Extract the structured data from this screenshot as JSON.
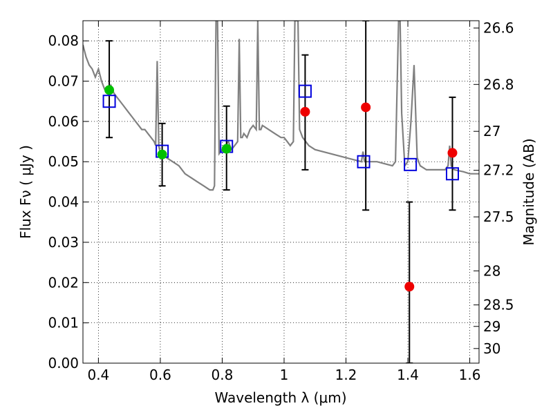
{
  "chart_data": {
    "type": "scatter",
    "xlabel": "Wavelength  λ (μm)",
    "ylabel": "Flux  Fν  ( μJy )",
    "ylabel2": "Magnitude (AB)",
    "xlim": [
      0.35,
      1.63
    ],
    "ylim": [
      0.0,
      0.085
    ],
    "grid": true,
    "x_ticks": [
      0.4,
      0.6,
      0.8,
      1.0,
      1.2,
      1.4,
      1.6
    ],
    "x_tick_labels": [
      "0.4",
      "0.6",
      "0.8",
      "1",
      "1.2",
      "1.4",
      "1.6"
    ],
    "y_ticks": [
      0.0,
      0.01,
      0.02,
      0.03,
      0.04,
      0.05,
      0.06,
      0.07,
      0.08
    ],
    "y_tick_labels": [
      "0.00",
      "0.01",
      "0.02",
      "0.03",
      "0.04",
      "0.05",
      "0.06",
      "0.07",
      "0.08"
    ],
    "mag_ticks": [
      26.6,
      26.8,
      27.0,
      27.2,
      27.5,
      28.0,
      28.5,
      29.0,
      30.0
    ],
    "mag_tick_labels": [
      "26.6",
      "26.8",
      "27",
      "27.2",
      "27.5",
      "28",
      "28.5",
      "29",
      "30"
    ],
    "colors": {
      "model": "#808080",
      "optical": "#00c000",
      "nir": "#ee0000",
      "model_photometry": "#0000dd",
      "errorbar": "#000000"
    },
    "series": [
      {
        "role": "model_spectrum",
        "color": "#808080",
        "x": [
          0.35,
          0.36,
          0.37,
          0.38,
          0.39,
          0.4,
          0.41,
          0.42,
          0.43,
          0.44,
          0.45,
          0.46,
          0.48,
          0.49,
          0.5,
          0.51,
          0.52,
          0.53,
          0.54,
          0.55,
          0.56,
          0.57,
          0.58,
          0.585,
          0.59,
          0.595,
          0.6,
          0.62,
          0.64,
          0.66,
          0.68,
          0.7,
          0.72,
          0.74,
          0.76,
          0.77,
          0.775,
          0.78,
          0.785,
          0.79,
          0.8,
          0.81,
          0.82,
          0.83,
          0.84,
          0.85,
          0.855,
          0.86,
          0.865,
          0.87,
          0.88,
          0.89,
          0.9,
          0.91,
          0.915,
          0.92,
          0.925,
          0.93,
          0.95,
          0.97,
          0.99,
          1.0,
          1.01,
          1.02,
          1.03,
          1.035,
          1.04,
          1.045,
          1.05,
          1.06,
          1.065,
          1.07,
          1.08,
          1.1,
          1.15,
          1.2,
          1.25,
          1.255,
          1.26,
          1.3,
          1.35,
          1.36,
          1.37,
          1.375,
          1.38,
          1.39,
          1.4,
          1.41,
          1.42,
          1.43,
          1.44,
          1.46,
          1.5,
          1.52,
          1.53,
          1.535,
          1.54,
          1.55,
          1.58,
          1.6,
          1.63
        ],
        "y": [
          0.079,
          0.076,
          0.074,
          0.073,
          0.071,
          0.073,
          0.07,
          0.068,
          0.068,
          0.069,
          0.067,
          0.066,
          0.064,
          0.063,
          0.062,
          0.061,
          0.06,
          0.059,
          0.058,
          0.058,
          0.057,
          0.056,
          0.055,
          0.054,
          0.075,
          0.054,
          0.052,
          0.051,
          0.05,
          0.049,
          0.047,
          0.046,
          0.045,
          0.044,
          0.043,
          0.043,
          0.044,
          0.085,
          0.085,
          0.052,
          0.053,
          0.054,
          0.055,
          0.053,
          0.054,
          0.055,
          0.0805,
          0.056,
          0.056,
          0.057,
          0.056,
          0.058,
          0.059,
          0.058,
          0.085,
          0.058,
          0.058,
          0.059,
          0.058,
          0.057,
          0.056,
          0.056,
          0.055,
          0.054,
          0.055,
          0.085,
          0.085,
          0.085,
          0.058,
          0.056,
          0.0555,
          0.055,
          0.054,
          0.053,
          0.052,
          0.051,
          0.05,
          0.0525,
          0.05,
          0.05,
          0.049,
          0.05,
          0.085,
          0.085,
          0.062,
          0.049,
          0.05,
          0.06,
          0.074,
          0.051,
          0.049,
          0.048,
          0.048,
          0.048,
          0.049,
          0.054,
          0.049,
          0.048,
          0.0475,
          0.047,
          0.047
        ]
      },
      {
        "name": "",
        "role": "optical_photometry",
        "color": "#00c000",
        "x": [
          0.435,
          0.606,
          0.814
        ],
        "y": [
          0.0678,
          0.0518,
          0.0532
        ],
        "yerr_low": [
          0.056,
          0.044,
          0.043
        ],
        "yerr_high": [
          0.08,
          0.0595,
          0.0638
        ]
      },
      {
        "name": "",
        "role": "nir_photometry",
        "color": "#ee0000",
        "x": [
          1.068,
          1.264,
          1.405,
          1.544
        ],
        "y": [
          0.0624,
          0.0635,
          0.019,
          0.0522
        ],
        "yerr_low": [
          0.048,
          0.038,
          0.0,
          0.038
        ],
        "yerr_high": [
          0.0765,
          0.085,
          0.04,
          0.066
        ]
      },
      {
        "name": "",
        "role": "model_photometry",
        "color": "#0000dd",
        "x": [
          0.435,
          0.606,
          0.814,
          1.068,
          1.257,
          1.408,
          1.544
        ],
        "y": [
          0.065,
          0.0526,
          0.0538,
          0.0675,
          0.05,
          0.0493,
          0.047
        ]
      }
    ]
  }
}
